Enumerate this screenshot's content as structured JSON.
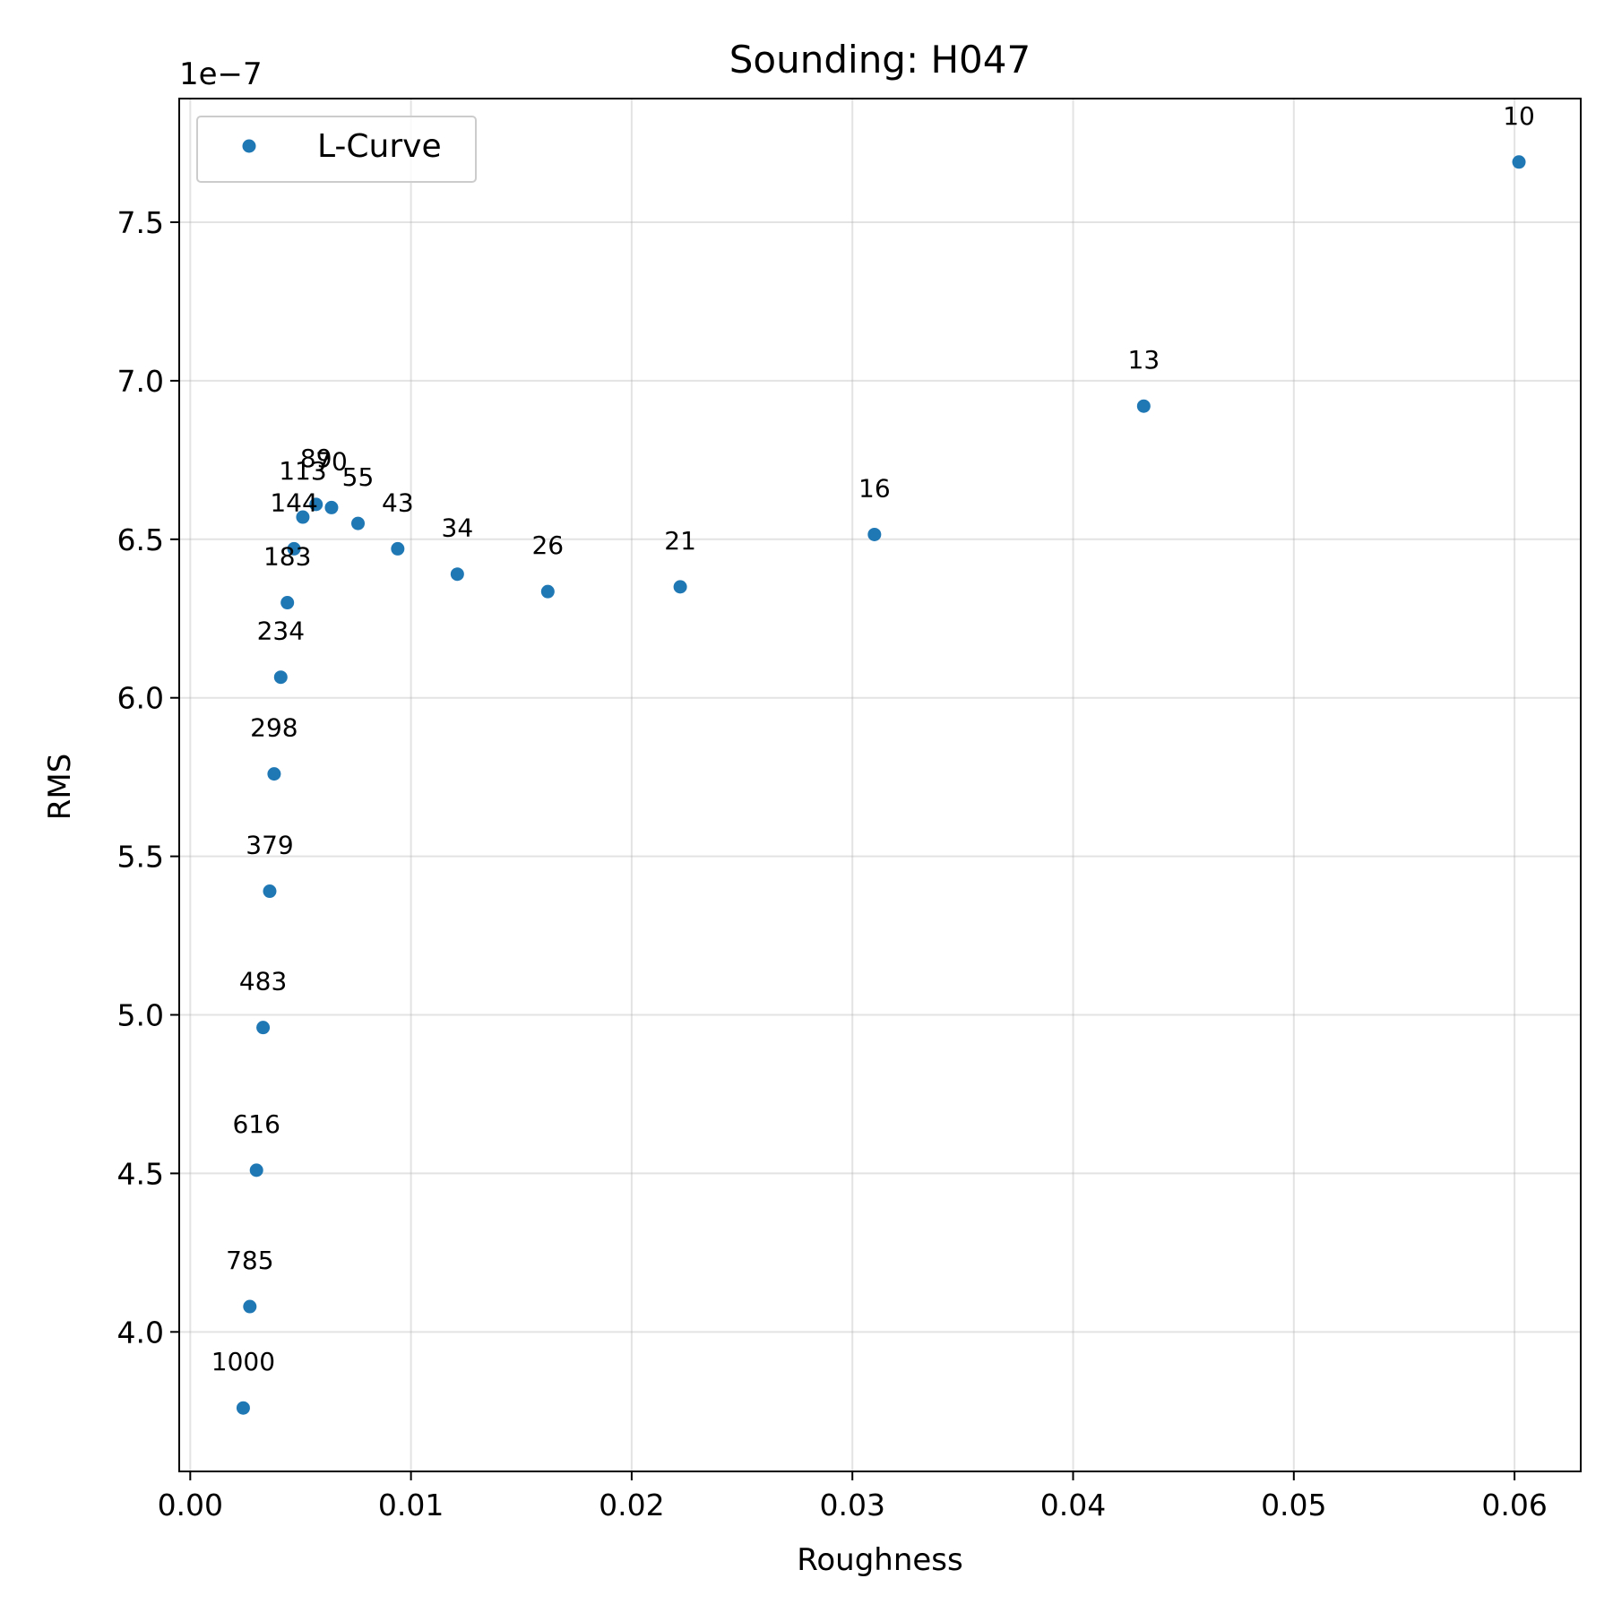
{
  "chart_data": {
    "type": "scatter",
    "title": "Sounding: H047",
    "xlabel": "Roughness",
    "ylabel": "RMS",
    "y_offset_label": "1e−7",
    "xlim": [
      -0.0005,
      0.063
    ],
    "ylim": [
      3.56,
      7.89
    ],
    "xticks": [
      0.0,
      0.01,
      0.02,
      0.03,
      0.04,
      0.05,
      0.06
    ],
    "xtick_labels": [
      "0.00",
      "0.01",
      "0.02",
      "0.03",
      "0.04",
      "0.05",
      "0.06"
    ],
    "yticks": [
      4.0,
      4.5,
      5.0,
      5.5,
      6.0,
      6.5,
      7.0,
      7.5
    ],
    "ytick_labels": [
      "4.0",
      "4.5",
      "5.0",
      "5.5",
      "6.0",
      "6.5",
      "7.0",
      "7.5"
    ],
    "grid": true,
    "legend_position": "top-left",
    "series": [
      {
        "name": "L-Curve",
        "color": "#1f77b4",
        "points": [
          {
            "x": 0.0602,
            "y": 7.69,
            "label": "10"
          },
          {
            "x": 0.0432,
            "y": 6.92,
            "label": "13"
          },
          {
            "x": 0.031,
            "y": 6.515,
            "label": "16"
          },
          {
            "x": 0.0222,
            "y": 6.35,
            "label": "21"
          },
          {
            "x": 0.0162,
            "y": 6.335,
            "label": "26"
          },
          {
            "x": 0.0121,
            "y": 6.39,
            "label": "34"
          },
          {
            "x": 0.0094,
            "y": 6.47,
            "label": "43"
          },
          {
            "x": 0.0076,
            "y": 6.55,
            "label": "55"
          },
          {
            "x": 0.0064,
            "y": 6.6,
            "label": "70"
          },
          {
            "x": 0.0057,
            "y": 6.61,
            "label": "89"
          },
          {
            "x": 0.0051,
            "y": 6.57,
            "label": "113"
          },
          {
            "x": 0.0047,
            "y": 6.47,
            "label": "144"
          },
          {
            "x": 0.0044,
            "y": 6.3,
            "label": "183"
          },
          {
            "x": 0.0041,
            "y": 6.065,
            "label": "234"
          },
          {
            "x": 0.0038,
            "y": 5.76,
            "label": "298"
          },
          {
            "x": 0.0036,
            "y": 5.39,
            "label": "379"
          },
          {
            "x": 0.0033,
            "y": 4.96,
            "label": "483"
          },
          {
            "x": 0.003,
            "y": 4.51,
            "label": "616"
          },
          {
            "x": 0.0027,
            "y": 4.08,
            "label": "785"
          },
          {
            "x": 0.0024,
            "y": 3.76,
            "label": "1000"
          }
        ]
      }
    ]
  }
}
